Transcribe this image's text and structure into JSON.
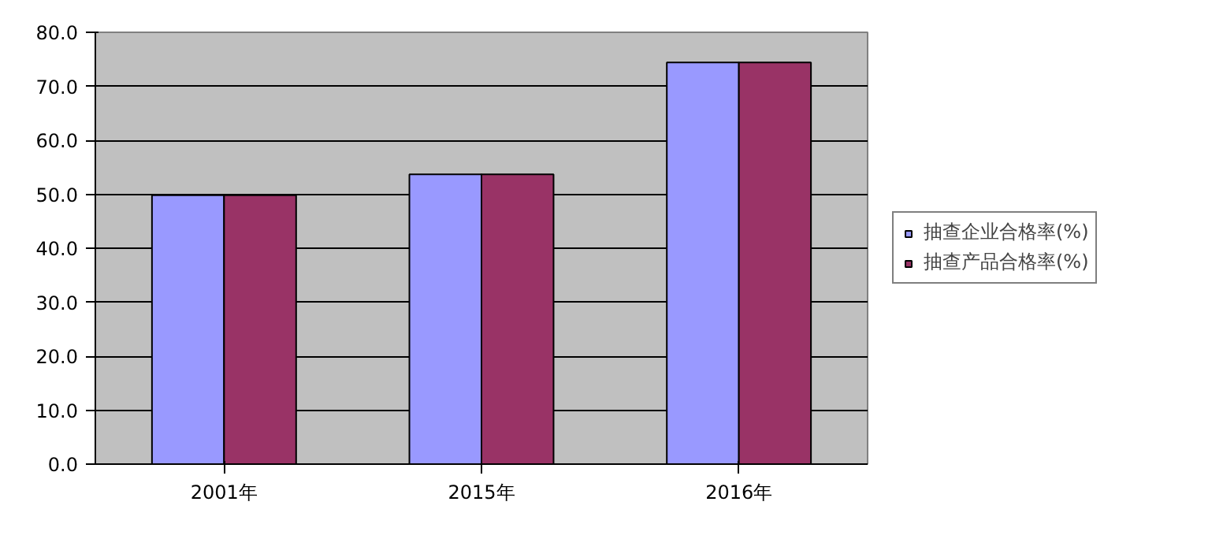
{
  "chart_data": {
    "type": "bar",
    "categories": [
      "2001年",
      "2015年",
      "2016年"
    ],
    "series": [
      {
        "name": "抽查企业合格率(%)",
        "color": "#9999ff",
        "values": [
          49.8,
          53.7,
          74.4
        ]
      },
      {
        "name": "抽查产品合格率(%)",
        "color": "#993366",
        "values": [
          49.8,
          53.7,
          74.4
        ]
      }
    ],
    "ylim": [
      0,
      80
    ],
    "yticks": [
      {
        "value": 0,
        "label": "0.0"
      },
      {
        "value": 10,
        "label": "10.0"
      },
      {
        "value": 20,
        "label": "20.0"
      },
      {
        "value": 30,
        "label": "30.0"
      },
      {
        "value": 40,
        "label": "40.0"
      },
      {
        "value": 50,
        "label": "50.0"
      },
      {
        "value": 60,
        "label": "60.0"
      },
      {
        "value": 70,
        "label": "70.0"
      },
      {
        "value": 80,
        "label": "80.0"
      }
    ],
    "grid": "y",
    "legend": "right"
  }
}
